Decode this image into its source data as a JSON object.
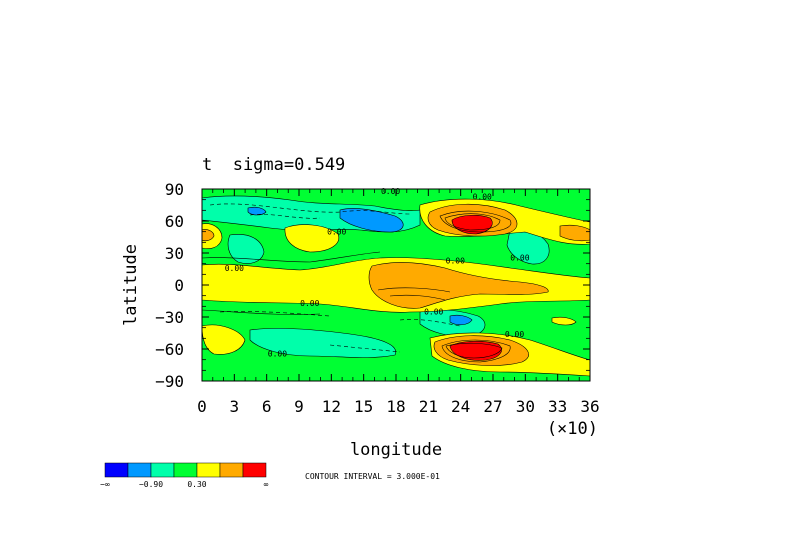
{
  "chart_data": {
    "type": "contour",
    "title": "t  sigma=0.549",
    "xlabel": "longitude",
    "ylabel": "latitude",
    "x_scale_note": "(×10)",
    "xlim": [
      0,
      36
    ],
    "ylim": [
      -90,
      90
    ],
    "x_ticks": [
      0,
      3,
      6,
      9,
      12,
      15,
      18,
      21,
      24,
      27,
      30,
      33,
      36
    ],
    "x_tick_labels": [
      "0",
      "3",
      "6",
      "9",
      "12",
      "15",
      "18",
      "21",
      "24",
      "27",
      "30",
      "33",
      "36"
    ],
    "y_ticks": [
      90,
      60,
      30,
      0,
      -30,
      -60,
      -90
    ],
    "y_tick_labels": [
      "90",
      "60",
      "30",
      "0",
      "−30",
      "−60",
      "−90"
    ],
    "contour_labels": [
      {
        "text": "0.00",
        "lon": 17.5,
        "lat": 88
      },
      {
        "text": "0.00",
        "lon": 26.0,
        "lat": 83
      },
      {
        "text": "0.00",
        "lon": 12.5,
        "lat": 50
      },
      {
        "text": "0.00",
        "lon": 3.0,
        "lat": 16
      },
      {
        "text": "0.00",
        "lon": 23.5,
        "lat": 23
      },
      {
        "text": "0.00",
        "lon": 29.5,
        "lat": 26
      },
      {
        "text": "0.00",
        "lon": 10.0,
        "lat": -17
      },
      {
        "text": "0.00",
        "lon": 21.5,
        "lat": -25
      },
      {
        "text": "0.00",
        "lon": 29.0,
        "lat": -46
      },
      {
        "text": "0.00",
        "lon": 7.0,
        "lat": -64
      }
    ],
    "legend": {
      "colors": [
        "#0000ff",
        "#0099ff",
        "#00ffaa",
        "#00ff33",
        "#ffff00",
        "#ffaa00",
        "#ff0000"
      ],
      "labels": [
        "−∞",
        "−0.90",
        "0.30",
        "∞"
      ]
    },
    "contour_interval_text": "CONTOUR INTERVAL = 3.000E-01",
    "fill_levels": {
      "deep_blue": "< -0.90",
      "blue": "-0.90 to -0.60",
      "teal": "-0.60 to -0.30",
      "green": "-0.30 to 0.00",
      "yellow": "0.00 to 0.30",
      "orange": "0.30 to 0.60",
      "red": "> 0.90"
    }
  }
}
